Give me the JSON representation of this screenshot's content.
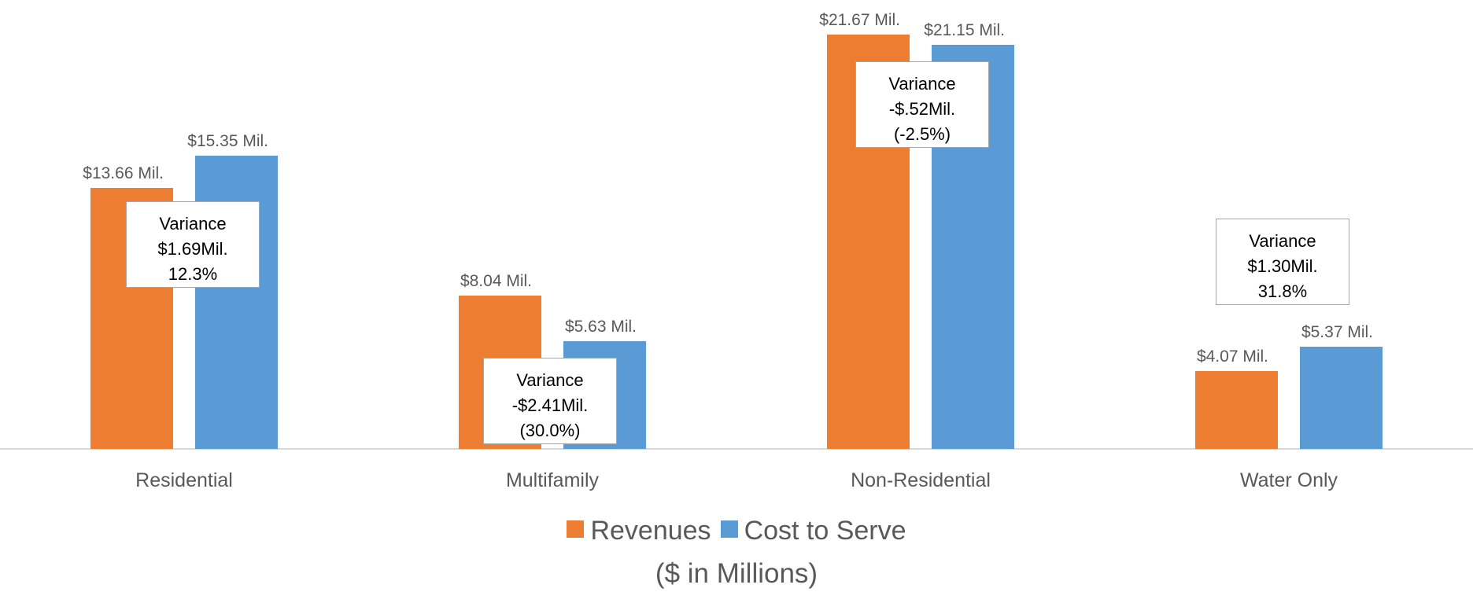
{
  "chart_data": {
    "type": "bar",
    "categories": [
      "Residential",
      "Multifamily",
      "Non-Residential",
      "Water Only"
    ],
    "series": [
      {
        "name": "Revenues",
        "color": "#ED7D31",
        "values": [
          13.66,
          8.04,
          21.67,
          4.07
        ],
        "value_labels": [
          "$13.66 Mil.",
          "$8.04 Mil.",
          "$21.67 Mil.",
          "$4.07 Mil."
        ]
      },
      {
        "name": "Cost to Serve",
        "color": "#5B9BD5",
        "values": [
          15.35,
          5.63,
          21.15,
          5.37
        ],
        "value_labels": [
          "$15.35 Mil.",
          "$5.63 Mil.",
          "$21.15 Mil.",
          "$5.37 Mil."
        ]
      }
    ],
    "ylim": [
      0,
      23.5
    ],
    "annotations": [
      [
        "Variance",
        "$1.69Mil.",
        "12.3%"
      ],
      [
        "Variance",
        "-$2.41Mil.",
        "(30.0%)"
      ],
      [
        "Variance",
        "-$.52Mil.",
        "(-2.5%)"
      ],
      [
        "Variance",
        "$1.30Mil.",
        "31.8%"
      ]
    ],
    "subtitle": "($ in Millions)"
  }
}
